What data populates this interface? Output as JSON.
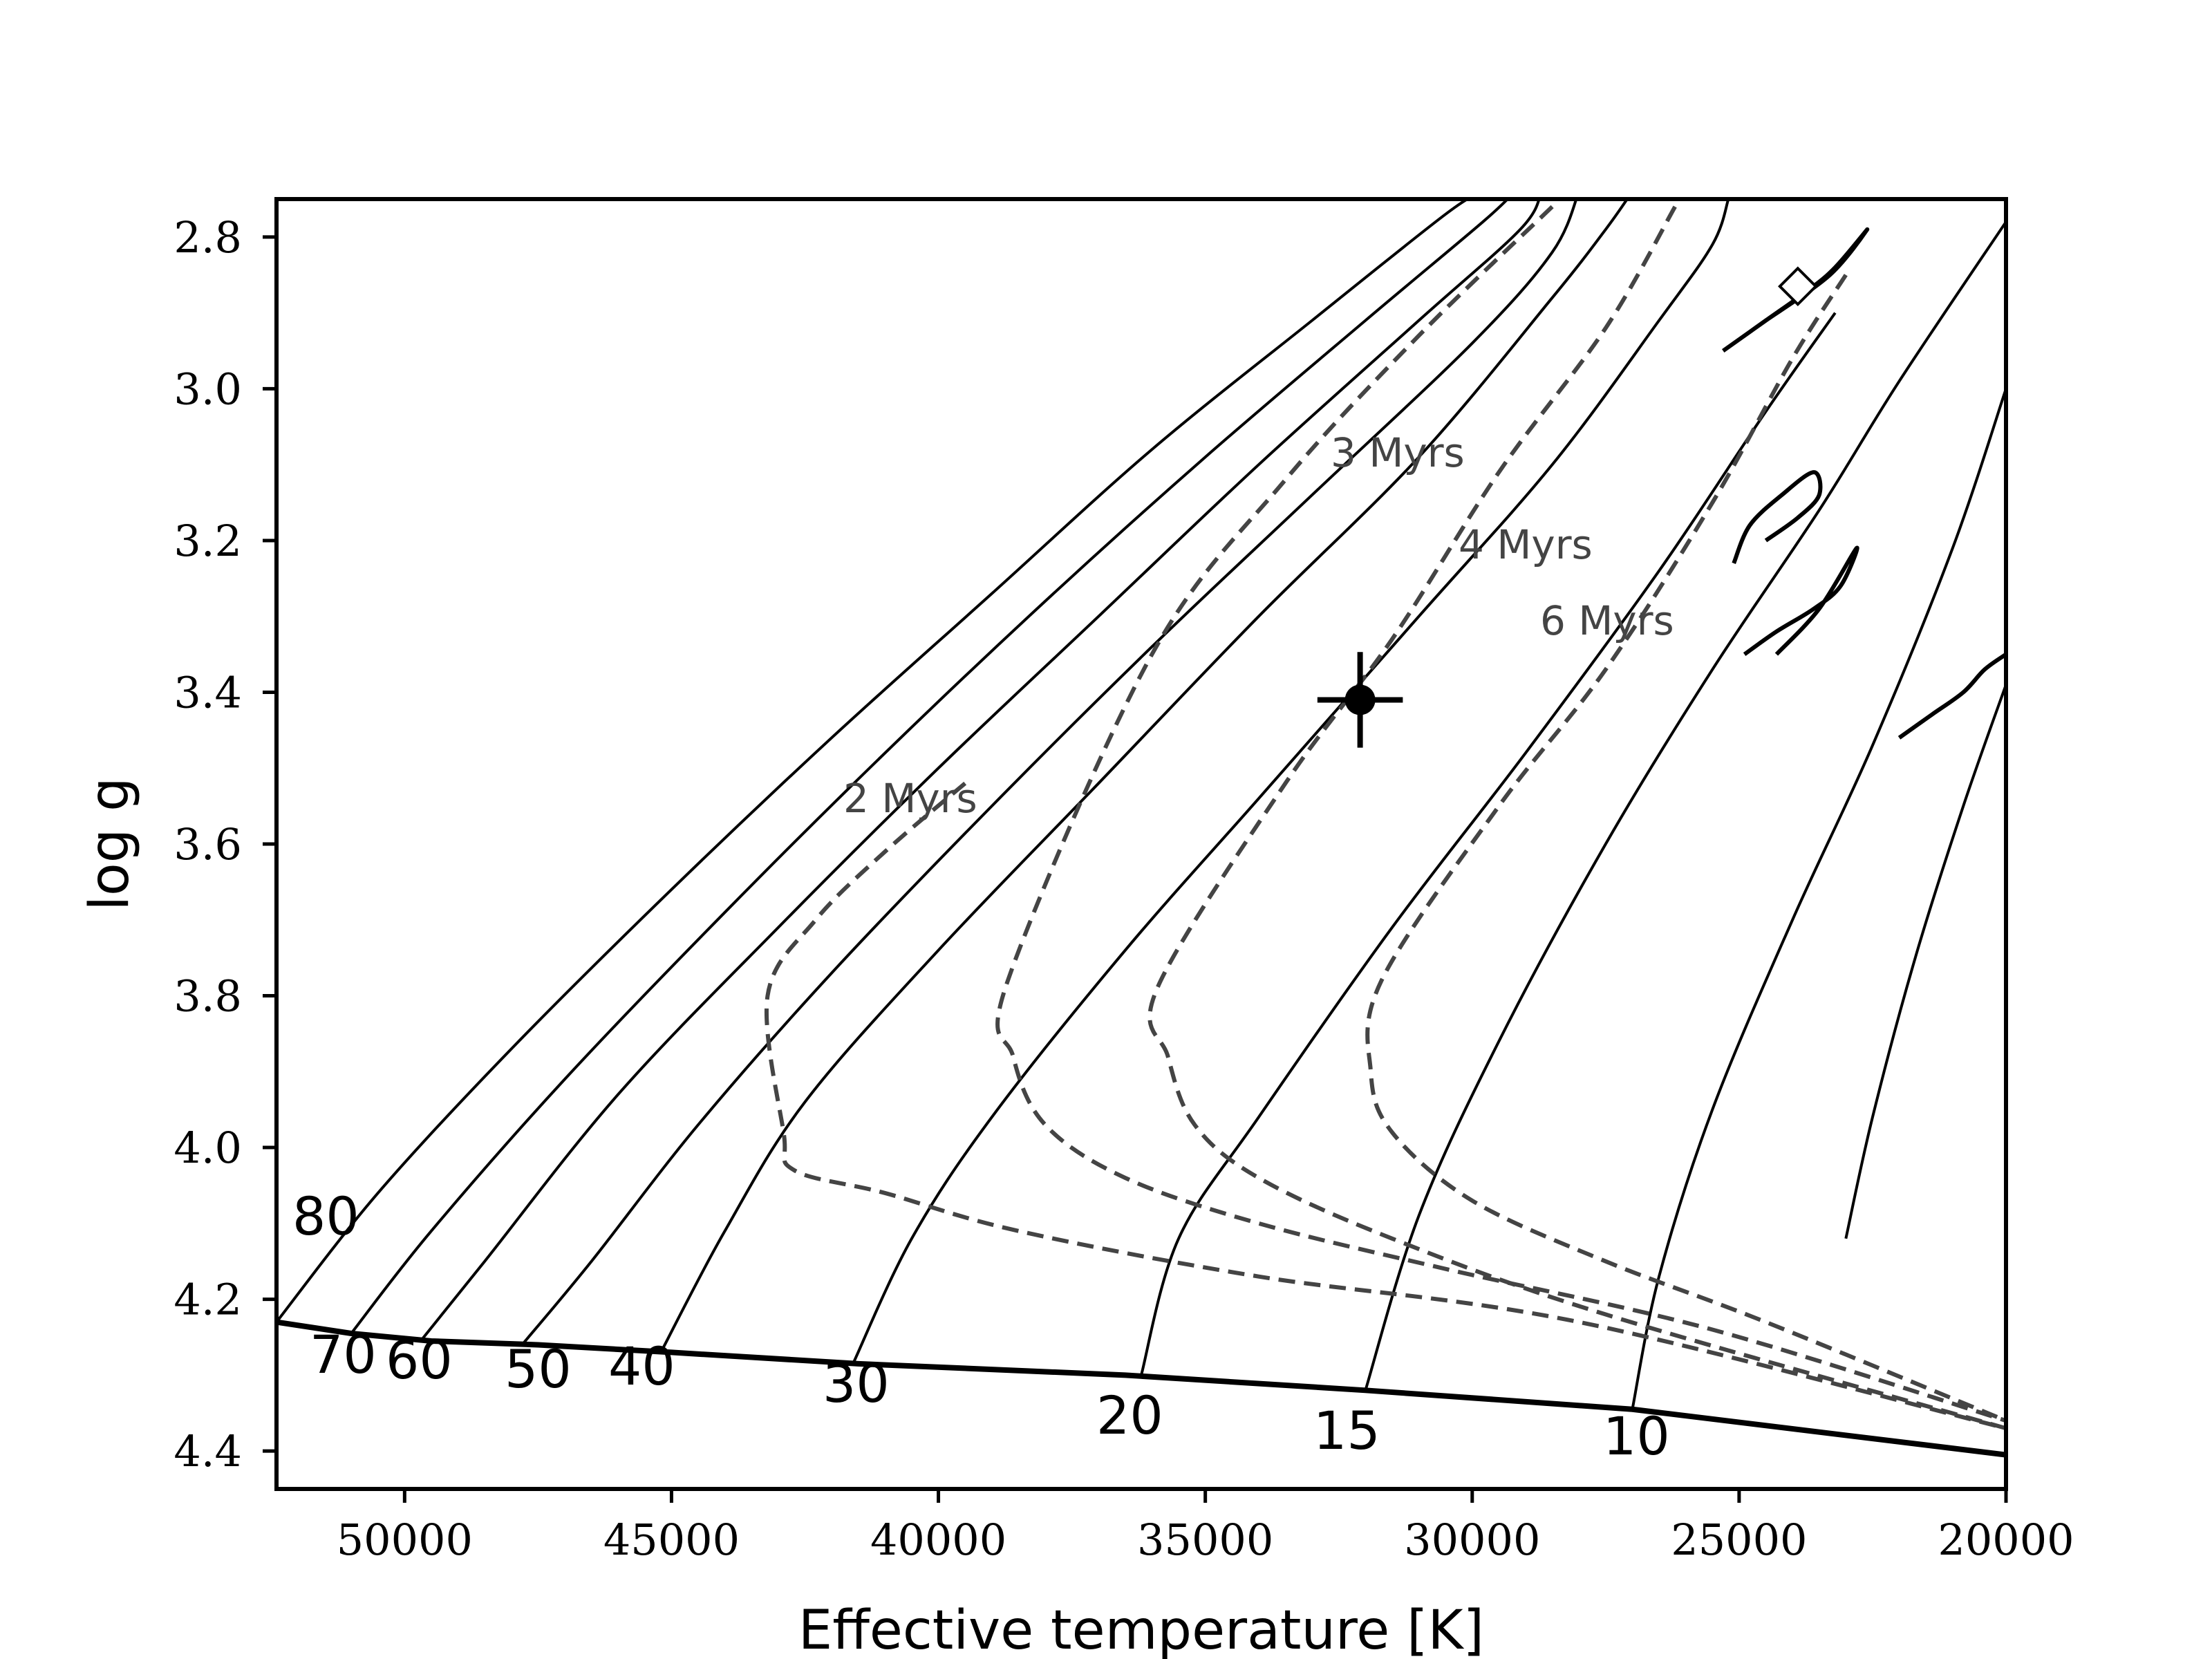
{
  "chart_data": {
    "type": "line",
    "title": "",
    "xlabel": "Effective temperature [K]",
    "ylabel": "log g",
    "xlim": [
      52400,
      20000
    ],
    "ylim": [
      4.45,
      2.75
    ],
    "x_inverted": true,
    "y_inverted": true,
    "grid": false,
    "x_ticks": [
      50000,
      45000,
      40000,
      35000,
      30000,
      25000,
      20000
    ],
    "y_ticks": [
      2.8,
      3.0,
      3.2,
      3.4,
      3.6,
      3.8,
      4.0,
      4.2,
      4.4
    ],
    "colors": {
      "tracks": "#000000",
      "isochrones": "#444444",
      "zams": "#000000"
    },
    "zams": {
      "x": [
        52400,
        51000,
        49500,
        47500,
        45000,
        41500,
        36500,
        32000,
        27000,
        20000
      ],
      "y": [
        4.23,
        4.245,
        4.255,
        4.26,
        4.27,
        4.285,
        4.3,
        4.32,
        4.345,
        4.405
      ]
    },
    "tracks": [
      {
        "label": "80",
        "x": [
          52400,
          50500,
          48000,
          45000,
          42000,
          39000,
          36000,
          33000,
          30500,
          29800
        ],
        "y": [
          4.23,
          4.06,
          3.87,
          3.66,
          3.46,
          3.27,
          3.08,
          2.91,
          2.77,
          2.74
        ]
      },
      {
        "label": "70",
        "x": [
          51000,
          49500,
          47000,
          44000,
          41000,
          38000,
          35000,
          32000,
          29800,
          29200
        ],
        "y": [
          4.245,
          4.11,
          3.91,
          3.69,
          3.48,
          3.28,
          3.09,
          2.91,
          2.78,
          2.74
        ]
      },
      {
        "label": "60",
        "x": [
          49700,
          48500,
          46000,
          43000,
          40000,
          37000,
          34000,
          31000,
          29100,
          28700
        ],
        "y": [
          4.255,
          4.15,
          3.93,
          3.71,
          3.5,
          3.3,
          3.1,
          2.91,
          2.79,
          2.74
        ]
      },
      {
        "label": "50",
        "x": [
          47800,
          46500,
          44500,
          42000,
          39000,
          36000,
          33000,
          30000,
          28500,
          28000
        ],
        "y": [
          4.26,
          4.15,
          3.97,
          3.77,
          3.55,
          3.34,
          3.14,
          2.94,
          2.82,
          2.74
        ]
      },
      {
        "label": "40",
        "x": [
          45200,
          44000,
          42500,
          40000,
          37000,
          34000,
          31000,
          28500,
          27500,
          27000
        ],
        "y": [
          4.27,
          4.11,
          3.94,
          3.74,
          3.52,
          3.3,
          3.09,
          2.88,
          2.79,
          2.74
        ]
      },
      {
        "label": "30",
        "x": [
          41600,
          40500,
          39000,
          36500,
          34000,
          31000,
          28500,
          26500,
          25500,
          25200
        ],
        "y": [
          4.285,
          4.12,
          3.96,
          3.74,
          3.54,
          3.3,
          3.1,
          2.91,
          2.81,
          2.75
        ]
      },
      {
        "label": "20",
        "x": [
          36200,
          35500,
          34000,
          31500,
          29000,
          26500,
          24500,
          23200
        ],
        "y": [
          4.3,
          4.12,
          3.96,
          3.71,
          3.48,
          3.24,
          3.03,
          2.9
        ]
      },
      {
        "label": "15",
        "x": [
          32000,
          31000,
          29500,
          27500,
          25500,
          23500,
          22000,
          20000
        ],
        "y": [
          4.32,
          4.09,
          3.86,
          3.6,
          3.37,
          3.16,
          2.99,
          2.78
        ]
      },
      {
        "label": "10",
        "x": [
          27000,
          26500,
          25500,
          24000,
          22500,
          21000,
          20000
        ],
        "y": [
          4.345,
          4.17,
          3.95,
          3.7,
          3.47,
          3.21,
          3.0
        ]
      },
      {
        "label": "",
        "x": [
          20000,
          20800,
          21700,
          22500,
          23000
        ],
        "y": [
          3.39,
          3.55,
          3.75,
          3.96,
          4.12
        ]
      }
    ],
    "blue_loops": [
      {
        "x": [
          25300,
          24500,
          23700,
          23200,
          22600,
          23300,
          24500
        ],
        "y": [
          2.95,
          2.91,
          2.87,
          2.84,
          2.79,
          2.85,
          2.91
        ]
      },
      {
        "x": [
          25100,
          24800,
          24200,
          23600,
          23500,
          23900,
          24500
        ],
        "y": [
          3.23,
          3.18,
          3.14,
          3.11,
          3.14,
          3.17,
          3.2
        ]
      },
      {
        "x": [
          24900,
          24300,
          23600,
          23100,
          22800,
          23500,
          24300
        ],
        "y": [
          3.35,
          3.32,
          3.29,
          3.26,
          3.21,
          3.29,
          3.35
        ]
      },
      {
        "x": [
          22000,
          21400,
          20800,
          20400,
          20000
        ],
        "y": [
          3.46,
          3.43,
          3.4,
          3.37,
          3.35
        ]
      }
    ],
    "isochrones": [
      {
        "label": "2 Myrs",
        "x": [
          39500,
          41000,
          42300,
          43200,
          42900,
          42700,
          41000,
          38500,
          34000,
          28000,
          20000
        ],
        "y": [
          3.52,
          3.61,
          3.7,
          3.8,
          3.98,
          4.03,
          4.06,
          4.11,
          4.17,
          4.23,
          4.37
        ]
      },
      {
        "label": "3 Myrs",
        "x": [
          28500,
          31000,
          33500,
          36000,
          38700,
          38600,
          38000,
          36500,
          34000,
          30500,
          25500,
          20000
        ],
        "y": [
          2.76,
          2.93,
          3.12,
          3.35,
          3.78,
          3.88,
          3.97,
          4.04,
          4.1,
          4.16,
          4.24,
          4.36
        ]
      },
      {
        "label": "4 Myrs",
        "x": [
          26200,
          27500,
          29500,
          31500,
          33500,
          35900,
          35700,
          35200,
          34000,
          31500,
          27500,
          20000
        ],
        "y": [
          2.76,
          2.92,
          3.11,
          3.33,
          3.52,
          3.79,
          3.88,
          3.97,
          4.04,
          4.12,
          4.22,
          4.37
        ]
      },
      {
        "label": "6 Myrs",
        "x": [
          23000,
          24000,
          25500,
          27500,
          29500,
          31700,
          31900,
          31500,
          30000,
          27500,
          24500,
          20000
        ],
        "y": [
          2.85,
          2.96,
          3.15,
          3.37,
          3.55,
          3.78,
          3.9,
          3.98,
          4.07,
          4.15,
          4.23,
          4.36
        ]
      }
    ],
    "markers": [
      {
        "shape": "circle",
        "x": 32100,
        "y": 3.41,
        "x_err": 800,
        "y_err": 0.045,
        "color": "#000000"
      },
      {
        "shape": "diamond",
        "x": 23900,
        "y": 2.865,
        "color": "#ffffff"
      }
    ]
  }
}
